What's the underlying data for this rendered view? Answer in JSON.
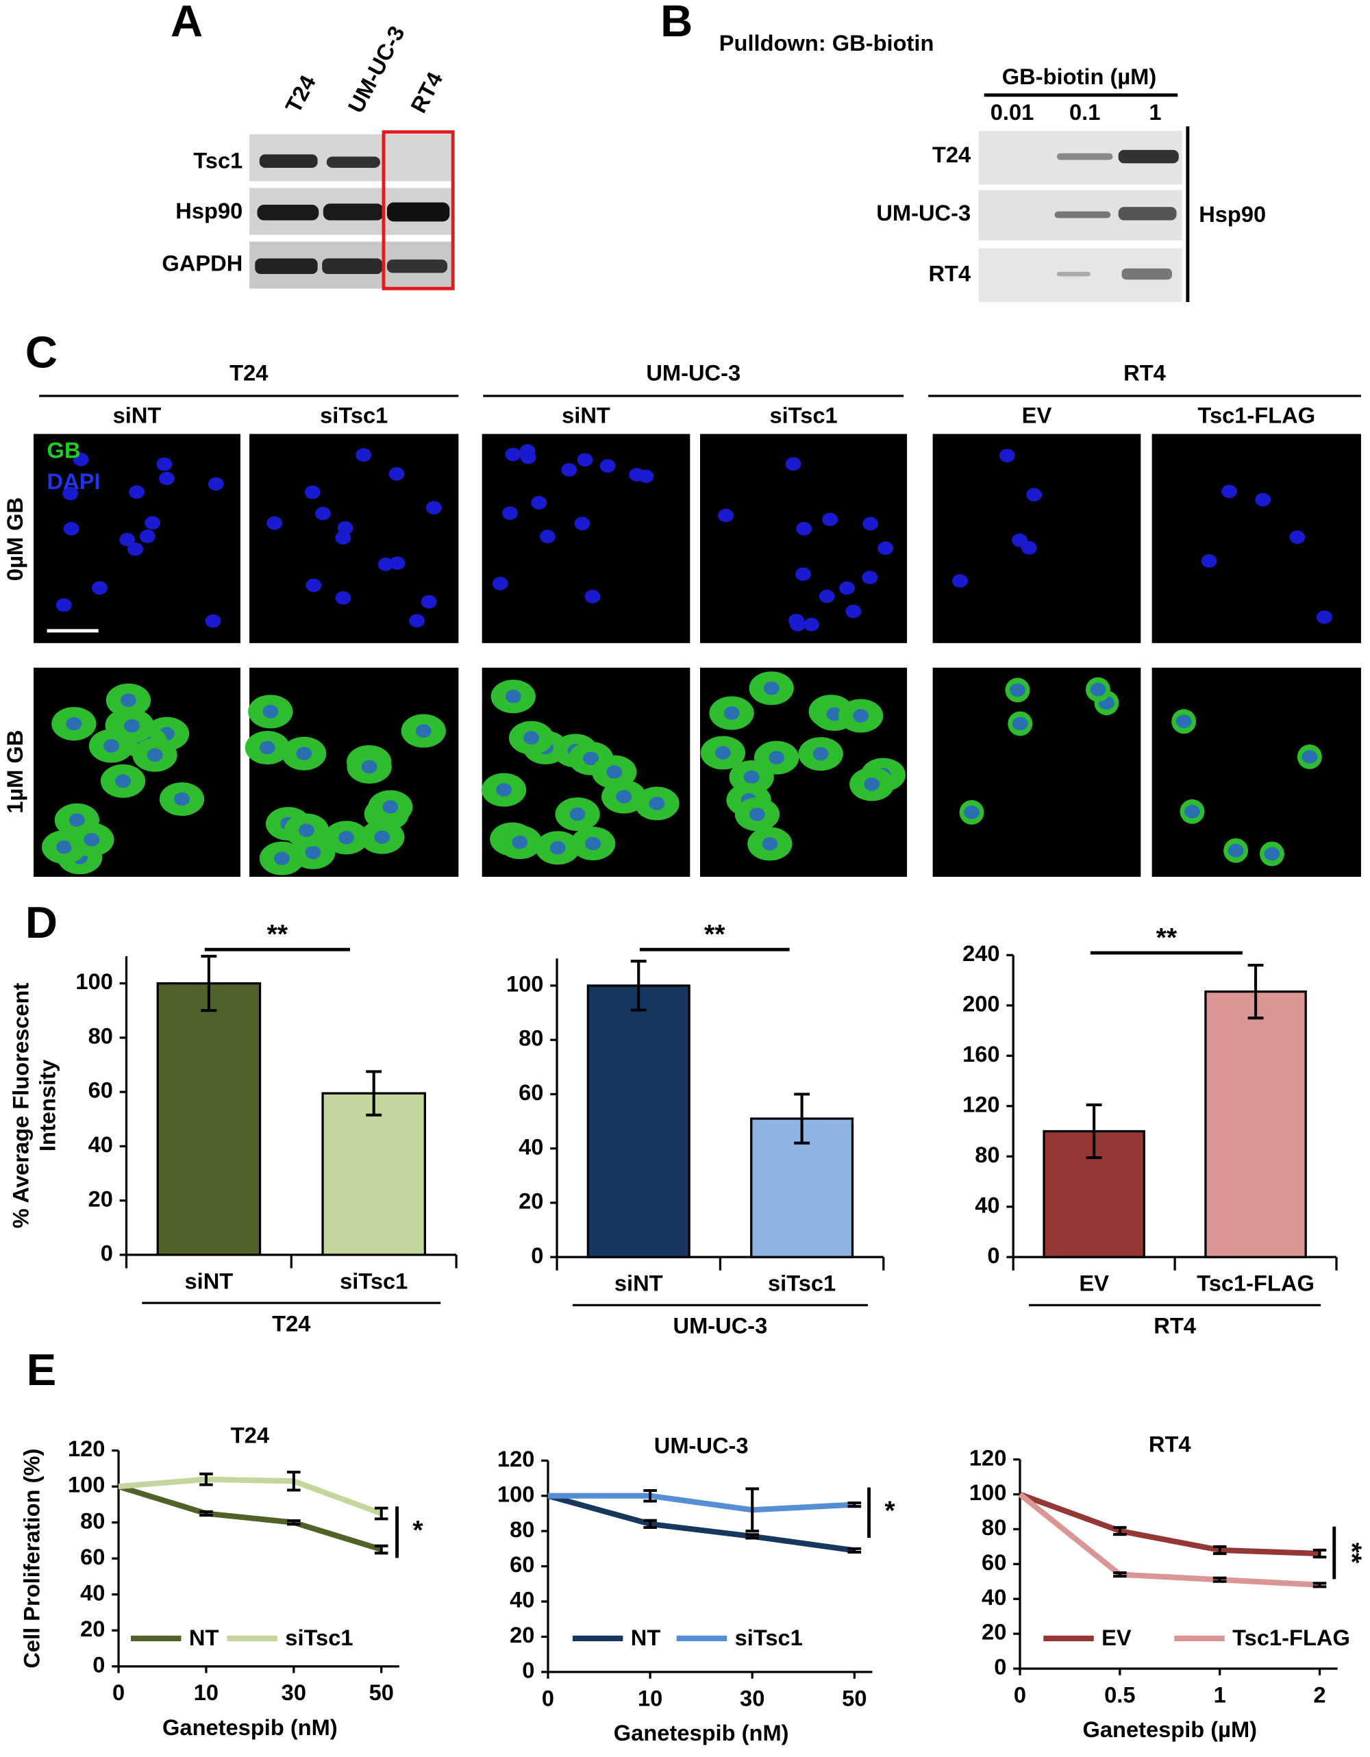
{
  "panel_a": {
    "label": "A",
    "lanes": [
      "T24",
      "UM-UC-3",
      "RT4"
    ],
    "rows": [
      "Tsc1",
      "Hsp90",
      "GAPDH"
    ]
  },
  "panel_b": {
    "label": "B",
    "title": "Pulldown: GB-biotin",
    "header": "GB-biotin (µM)",
    "concentrations": [
      "0.01",
      "0.1",
      "1"
    ],
    "rows": [
      "T24",
      "UM-UC-3",
      "RT4"
    ],
    "target": "Hsp90"
  },
  "panel_c": {
    "label": "C",
    "groups": [
      {
        "name": "T24",
        "conditions": [
          "siNT",
          "siTsc1"
        ]
      },
      {
        "name": "UM-UC-3",
        "conditions": [
          "siNT",
          "siTsc1"
        ]
      },
      {
        "name": "RT4",
        "conditions": [
          "EV",
          "Tsc1-FLAG"
        ]
      }
    ],
    "rows": [
      "0µM GB",
      "1µM GB"
    ],
    "stains": [
      "GB",
      "DAPI"
    ]
  },
  "panel_d_label": "D",
  "panel_e_label": "E",
  "chart_data": [
    {
      "type": "bar",
      "ylabel": [
        "% Average Fluorescent",
        "Intensity"
      ],
      "group": "T24",
      "categories": [
        "siNT",
        "siTsc1"
      ],
      "values": [
        100,
        59.5
      ],
      "errors": [
        10,
        8
      ],
      "colors": [
        "#4f6228",
        "#c3d69b"
      ],
      "ylim": [
        0,
        110
      ],
      "yticks": [
        0,
        20,
        40,
        60,
        80,
        100
      ],
      "significance": "**"
    },
    {
      "type": "bar",
      "group": "UM-UC-3",
      "categories": [
        "siNT",
        "siTsc1"
      ],
      "values": [
        100,
        51
      ],
      "errors": [
        9,
        9
      ],
      "colors": [
        "#17375e",
        "#8db3e2"
      ],
      "ylim": [
        0,
        110
      ],
      "yticks": [
        0,
        20,
        40,
        60,
        80,
        100
      ],
      "significance": "**"
    },
    {
      "type": "bar",
      "group": "RT4",
      "categories": [
        "EV",
        "Tsc1-FLAG"
      ],
      "values": [
        100,
        211
      ],
      "errors": [
        21,
        21
      ],
      "colors": [
        "#953735",
        "#d99694"
      ],
      "ylim": [
        0,
        240
      ],
      "yticks": [
        0,
        40,
        80,
        120,
        160,
        200,
        240
      ],
      "significance": "**"
    },
    {
      "type": "line",
      "title": "T24",
      "ylabel": "Cell Proliferation (%)",
      "xlabel": "Ganetespib (nM)",
      "categories": [
        "0",
        "10",
        "30",
        "50"
      ],
      "ylim": [
        0,
        120
      ],
      "yticks": [
        0,
        20,
        40,
        60,
        80,
        100,
        120
      ],
      "series": [
        {
          "name": "NT",
          "color": "#4f6228",
          "values": [
            100,
            85,
            80,
            65
          ],
          "errors": [
            0,
            1,
            1,
            2
          ]
        },
        {
          "name": "siTsc1",
          "color": "#c3d69b",
          "values": [
            100,
            104,
            103,
            85
          ],
          "errors": [
            0,
            3,
            5,
            3
          ]
        }
      ],
      "significance": "*"
    },
    {
      "type": "line",
      "title": "UM-UC-3",
      "xlabel": "Ganetespib (nM)",
      "categories": [
        "0",
        "10",
        "30",
        "50"
      ],
      "ylim": [
        0,
        120
      ],
      "yticks": [
        0,
        20,
        40,
        60,
        80,
        100,
        120
      ],
      "series": [
        {
          "name": "NT",
          "color": "#17375e",
          "values": [
            100,
            84,
            77,
            69
          ],
          "errors": [
            0,
            2,
            1,
            1
          ]
        },
        {
          "name": "siTsc1",
          "color": "#558ed5",
          "values": [
            100,
            100,
            92,
            95
          ],
          "errors": [
            0,
            3,
            12,
            1
          ]
        }
      ],
      "significance": "*"
    },
    {
      "type": "line",
      "title": "RT4",
      "xlabel": "Ganetespib (µM)",
      "categories": [
        "0",
        "0.5",
        "1",
        "2"
      ],
      "ylim": [
        0,
        120
      ],
      "yticks": [
        0,
        20,
        40,
        60,
        80,
        100,
        120
      ],
      "series": [
        {
          "name": "EV",
          "color": "#953735",
          "values": [
            100,
            79,
            68,
            66
          ],
          "errors": [
            0,
            2,
            2,
            2
          ]
        },
        {
          "name": "Tsc1-FLAG",
          "color": "#d99694",
          "values": [
            100,
            54,
            51,
            48
          ],
          "errors": [
            0,
            1,
            1,
            1
          ]
        }
      ],
      "significance": "**"
    }
  ]
}
